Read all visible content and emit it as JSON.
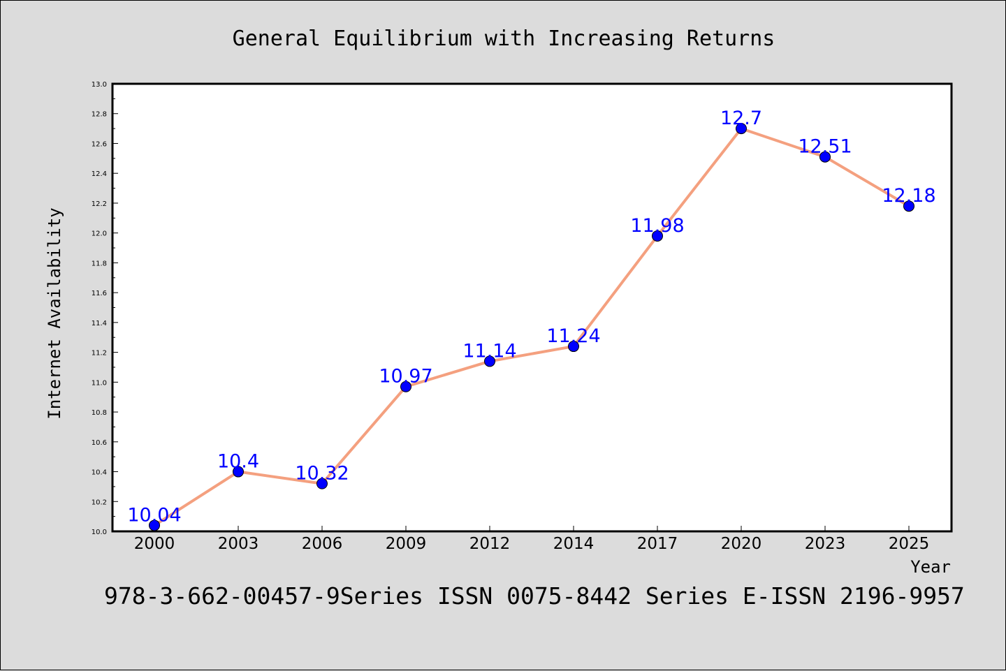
{
  "chart_data": {
    "type": "line",
    "title": "General Equilibrium with Increasing Returns",
    "xlabel": "Year",
    "ylabel": "Internet Availability",
    "categories": [
      "2000",
      "2003",
      "2006",
      "2009",
      "2012",
      "2014",
      "2017",
      "2020",
      "2023",
      "2025"
    ],
    "series": [
      {
        "values": [
          10.04,
          10.4,
          10.32,
          10.97,
          11.14,
          11.24,
          11.98,
          12.7,
          12.51,
          12.18
        ]
      }
    ],
    "data_labels": [
      "10.04",
      "10.4",
      "10.32",
      "10.97",
      "11.14",
      "11.24",
      "11.98",
      "12.7",
      "12.51",
      "12.18"
    ],
    "ylim": [
      10.0,
      13.0
    ],
    "yticks": [
      "10.0",
      "10.2",
      "10.4",
      "10.6",
      "10.8",
      "11.0",
      "11.2",
      "11.4",
      "11.6",
      "11.8",
      "12.0",
      "12.2",
      "12.4",
      "12.6",
      "12.8",
      "13.0"
    ],
    "grid": false,
    "line_color": "#f4a07f",
    "marker_color": "#0000ff",
    "label_color": "#0000ff"
  },
  "footer": "978-3-662-00457-9Series ISSN 0075-8442 Series E-ISSN 2196-9957"
}
